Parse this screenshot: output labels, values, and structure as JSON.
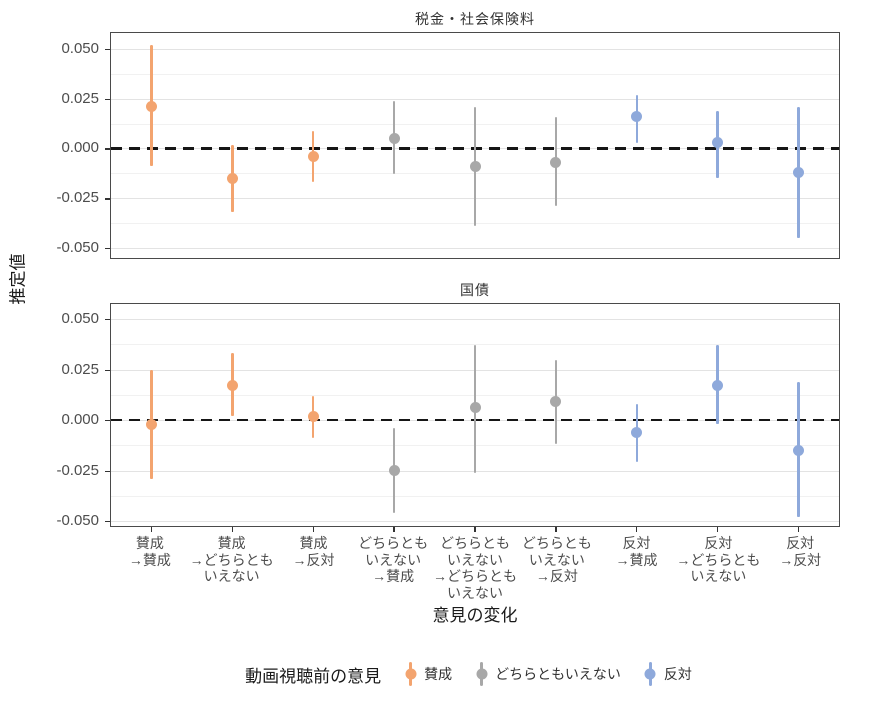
{
  "chart_data": {
    "type": "pointrange",
    "ylabel": "推定値",
    "xlabel": "意見の変化",
    "grid": "horizontal-only",
    "legend_position": "bottom",
    "legend": {
      "title": "動画視聴前の意見"
    },
    "zero_line": 0,
    "y_ticks": [
      {
        "value": 0.05,
        "label": "0.050"
      },
      {
        "value": 0.025,
        "label": "0.025"
      },
      {
        "value": 0.0,
        "label": "0.000"
      },
      {
        "value": -0.025,
        "label": "-0.025"
      },
      {
        "value": -0.05,
        "label": "-0.050"
      }
    ],
    "y_minor": [
      0.0375,
      0.0125,
      -0.0125,
      -0.0375
    ],
    "categories": [
      [
        "賛成",
        "→賛成"
      ],
      [
        "賛成",
        "→どちらとも",
        "いえない"
      ],
      [
        "賛成",
        "→反対"
      ],
      [
        "どちらとも",
        "いえない",
        "→賛成"
      ],
      [
        "どちらとも",
        "いえない",
        "→どちらとも",
        "いえない"
      ],
      [
        "どちらとも",
        "いえない",
        "→反対"
      ],
      [
        "反対",
        "→賛成"
      ],
      [
        "反対",
        "→どちらとも",
        "いえない"
      ],
      [
        "反対",
        "→反対"
      ]
    ],
    "groups": [
      {
        "name": "賛成",
        "color": "#F3A46F"
      },
      {
        "name": "どちらともいえない",
        "color": "#A8A8A8"
      },
      {
        "name": "反対",
        "color": "#8EA9DB"
      }
    ],
    "facets": [
      {
        "title": "税金・社会保険料",
        "ylim": [
          -0.055,
          0.058
        ],
        "points": [
          {
            "category": 0,
            "group": 0,
            "estimate": 0.021,
            "lower": -0.009,
            "upper": 0.052
          },
          {
            "category": 1,
            "group": 0,
            "estimate": -0.015,
            "lower": -0.032,
            "upper": 0.002
          },
          {
            "category": 2,
            "group": 0,
            "estimate": -0.004,
            "lower": -0.017,
            "upper": 0.009
          },
          {
            "category": 3,
            "group": 1,
            "estimate": 0.005,
            "lower": -0.013,
            "upper": 0.024
          },
          {
            "category": 4,
            "group": 1,
            "estimate": -0.009,
            "lower": -0.039,
            "upper": 0.021
          },
          {
            "category": 5,
            "group": 1,
            "estimate": -0.007,
            "lower": -0.029,
            "upper": 0.016
          },
          {
            "category": 6,
            "group": 2,
            "estimate": 0.016,
            "lower": 0.003,
            "upper": 0.027
          },
          {
            "category": 7,
            "group": 2,
            "estimate": 0.003,
            "lower": -0.015,
            "upper": 0.019
          },
          {
            "category": 8,
            "group": 2,
            "estimate": -0.012,
            "lower": -0.045,
            "upper": 0.021
          }
        ]
      },
      {
        "title": "国債",
        "ylim": [
          -0.0525,
          0.0575
        ],
        "points": [
          {
            "category": 0,
            "group": 0,
            "estimate": -0.002,
            "lower": -0.029,
            "upper": 0.025
          },
          {
            "category": 1,
            "group": 0,
            "estimate": 0.017,
            "lower": 0.002,
            "upper": 0.033
          },
          {
            "category": 2,
            "group": 0,
            "estimate": 0.002,
            "lower": -0.009,
            "upper": 0.012
          },
          {
            "category": 3,
            "group": 1,
            "estimate": -0.025,
            "lower": -0.046,
            "upper": -0.004
          },
          {
            "category": 4,
            "group": 1,
            "estimate": 0.006,
            "lower": -0.026,
            "upper": 0.037
          },
          {
            "category": 5,
            "group": 1,
            "estimate": 0.009,
            "lower": -0.012,
            "upper": 0.03
          },
          {
            "category": 6,
            "group": 2,
            "estimate": -0.006,
            "lower": -0.021,
            "upper": 0.008
          },
          {
            "category": 7,
            "group": 2,
            "estimate": 0.017,
            "lower": -0.002,
            "upper": 0.037
          },
          {
            "category": 8,
            "group": 2,
            "estimate": -0.015,
            "lower": -0.048,
            "upper": 0.019
          }
        ]
      }
    ]
  }
}
